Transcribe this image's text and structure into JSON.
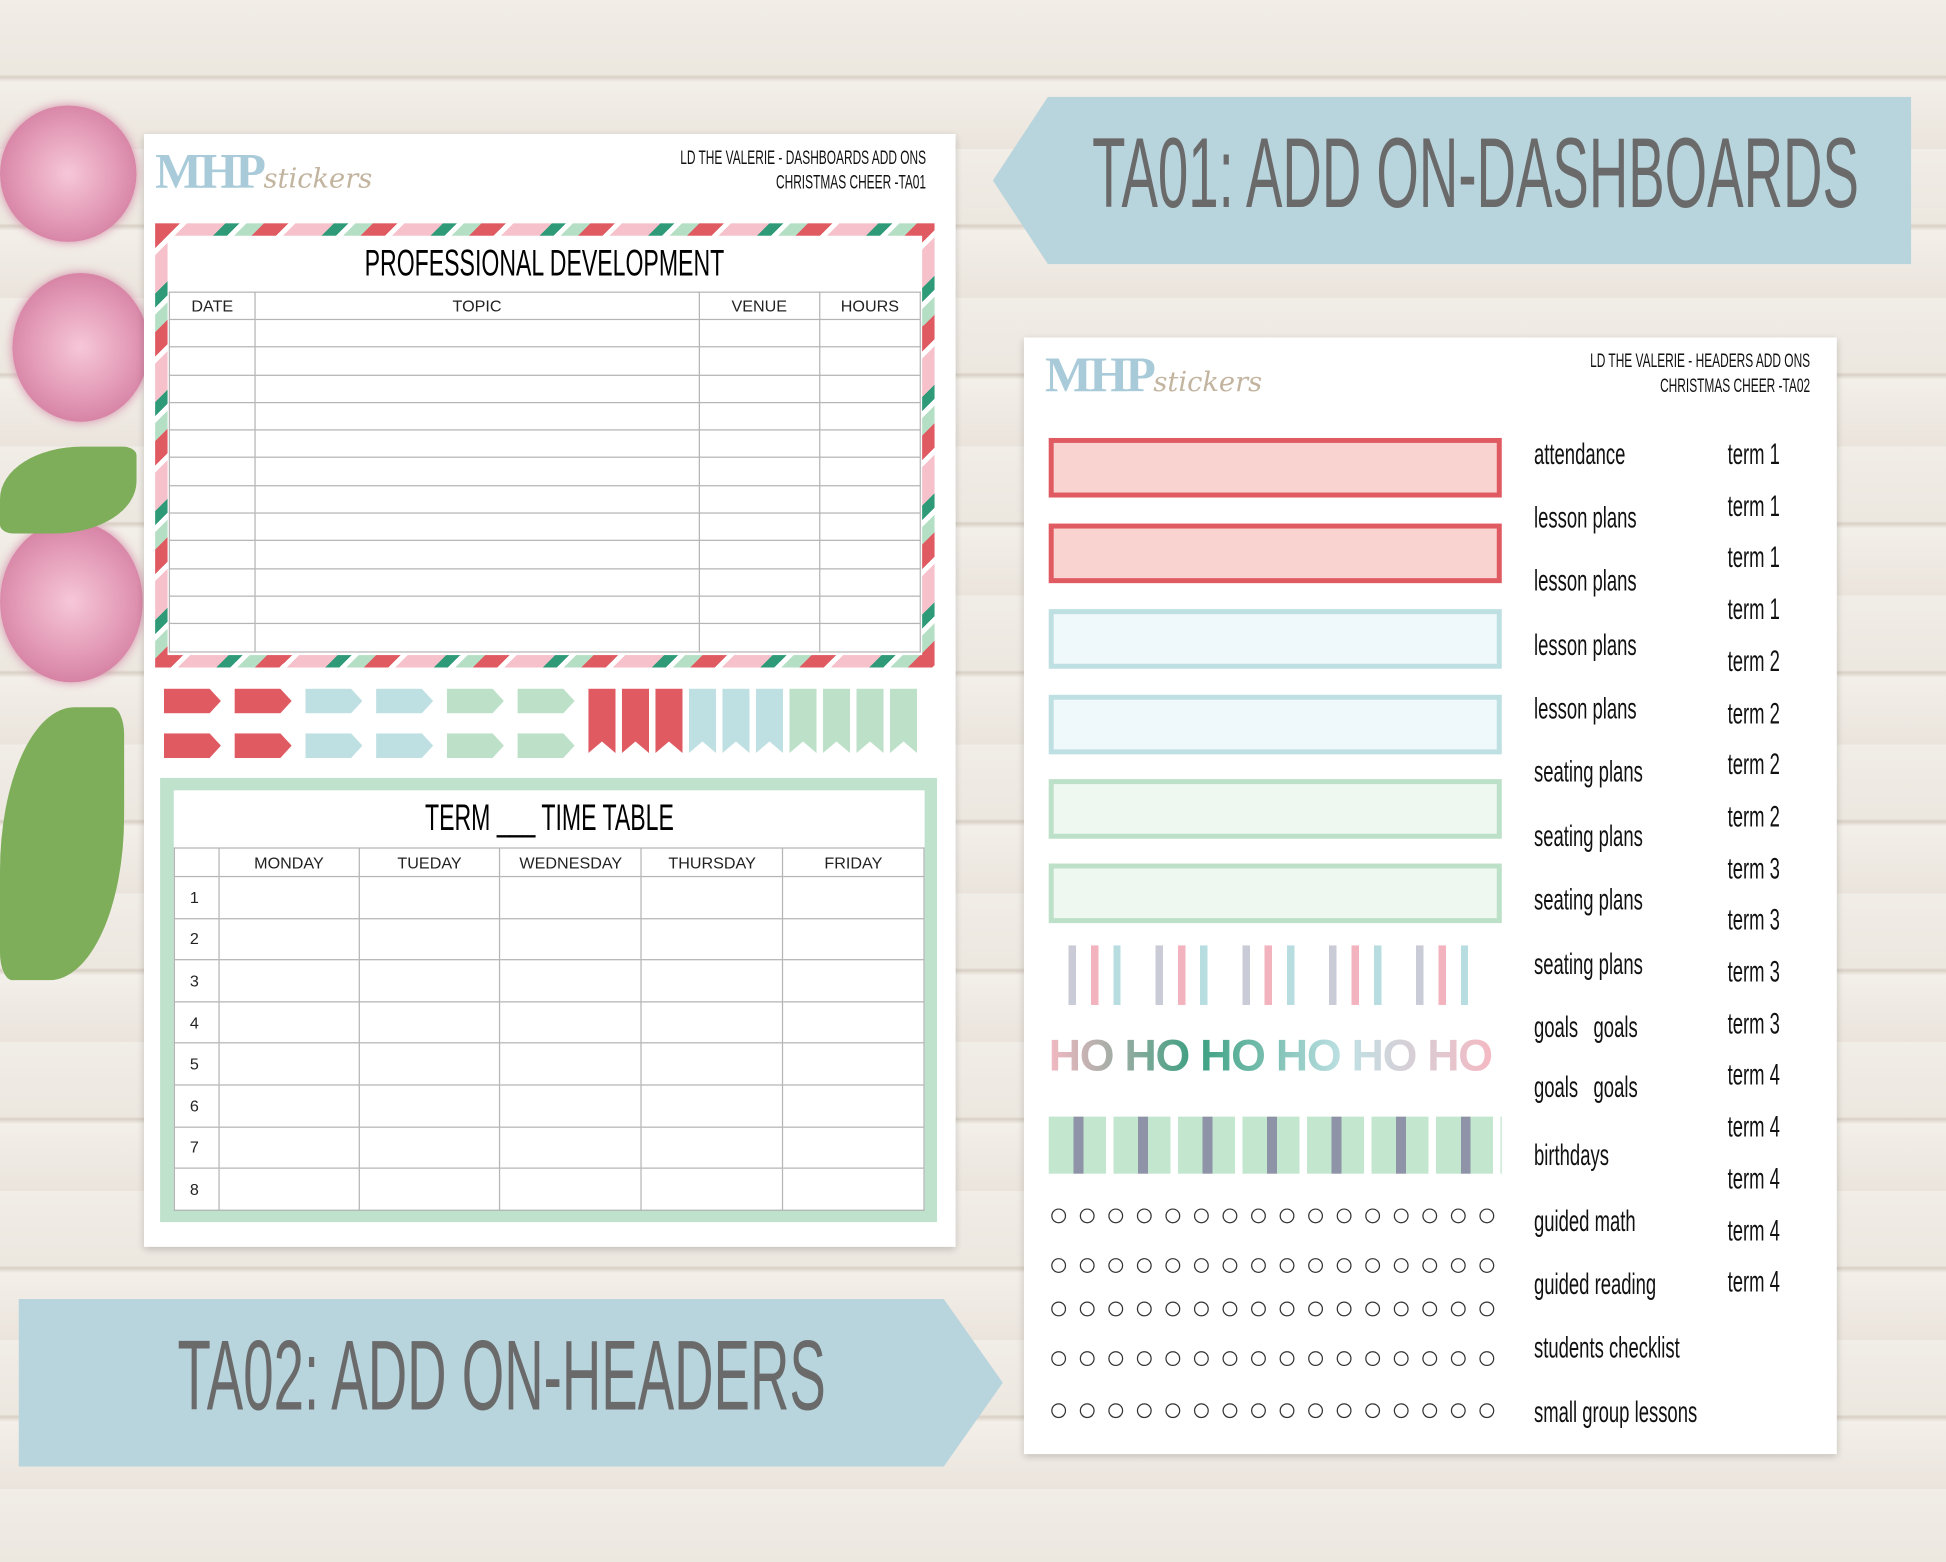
{
  "banners": {
    "ta01": "TA01: ADD ON-DASHBOARDS",
    "ta02": "TA02: ADD ON-HEADERS",
    "color": "#b8d4dd"
  },
  "logo": {
    "brand": "MHP",
    "script": "stickers"
  },
  "left_sheet": {
    "header_line1": "LD THE VALERIE - DASHBOARDS ADD ONS",
    "header_line2": "CHRISTMAS CHEER -TA01",
    "pd": {
      "title": "PROFESSIONAL DEVELOPMENT",
      "columns": [
        "DATE",
        "TOPIC",
        "VENUE",
        "HOURS"
      ]
    },
    "timetable": {
      "title": "TERM ___ TIME TABLE",
      "columns": [
        "",
        "MONDAY",
        "TUEDAY",
        "WEDNESDAY",
        "THURSDAY",
        "FRIDAY"
      ],
      "rows": [
        "1",
        "2",
        "3",
        "4",
        "5",
        "6",
        "7",
        "8"
      ]
    }
  },
  "right_sheet": {
    "header_line1": "LD THE VALERIE - HEADERS ADD ONS",
    "header_line2": "CHRISTMAS CHEER -TA02",
    "bar_colors": [
      {
        "border": "#e05a62",
        "fill": "#f9d3d0"
      },
      {
        "border": "#e05a62",
        "fill": "#f9d3d0"
      },
      {
        "border": "#bfe0e3",
        "fill": "#eff8fa"
      },
      {
        "border": "#bfe0e3",
        "fill": "#eff8fa"
      },
      {
        "border": "#bde0c8",
        "fill": "#eef8f1"
      },
      {
        "border": "#bde0c8",
        "fill": "#eef8f1"
      }
    ],
    "ho_text": "HO HO HO HO HO HO",
    "labels": [
      "attendance",
      "lesson plans",
      "lesson plans",
      "lesson plans",
      "lesson plans",
      "seating plans",
      "seating plans",
      "seating plans",
      "seating plans",
      "goals   goals",
      "goals   goals",
      "birthdays",
      "guided math",
      "guided reading",
      "students checklist",
      "small group lessons"
    ],
    "terms": [
      "term 1",
      "term 1",
      "term 1",
      "term 1",
      "term 2",
      "term 2",
      "term 2",
      "term 2",
      "term 3",
      "term 3",
      "term 3",
      "term 3",
      "term 4",
      "term 4",
      "term 4",
      "term 4",
      "term 4"
    ]
  }
}
